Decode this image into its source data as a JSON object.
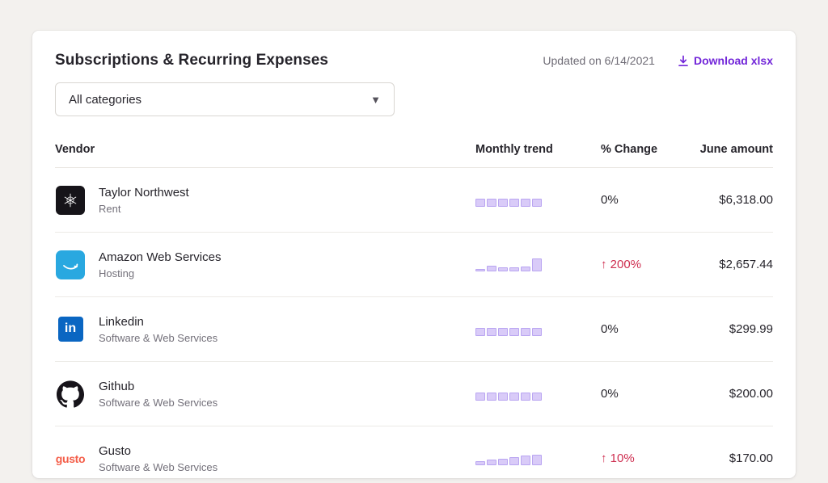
{
  "header": {
    "title": "Subscriptions & Recurring Expenses",
    "updated": "Updated on 6/14/2021",
    "download_label": "Download xlsx",
    "download_icon": "download-icon"
  },
  "filter": {
    "selected": "All categories",
    "chevron_icon": "chevron-down-icon"
  },
  "table": {
    "headers": [
      "Vendor",
      "Monthly trend",
      "% Change",
      "June amount"
    ],
    "rows": [
      {
        "vendor": "Taylor Northwest",
        "category": "Rent",
        "icon": "taylor-northwest-logo",
        "trend": [
          10,
          10,
          10,
          10,
          10,
          10
        ],
        "change": "0%",
        "change_type": "neutral",
        "amount": "$6,318.00"
      },
      {
        "vendor": "Amazon Web Services",
        "category": "Hosting",
        "icon": "aws-logo",
        "trend": [
          3,
          7,
          5,
          5,
          6,
          16
        ],
        "change": "↑ 200%",
        "change_type": "up",
        "amount": "$2,657.44"
      },
      {
        "vendor": "Linkedin",
        "category": "Software & Web Services",
        "icon": "linkedin-logo",
        "trend": [
          10,
          10,
          10,
          10,
          10,
          10
        ],
        "change": "0%",
        "change_type": "neutral",
        "amount": "$299.99"
      },
      {
        "vendor": "Github",
        "category": "Software & Web Services",
        "icon": "github-logo",
        "trend": [
          10,
          10,
          10,
          10,
          10,
          10
        ],
        "change": "0%",
        "change_type": "neutral",
        "amount": "$200.00"
      },
      {
        "vendor": "Gusto",
        "category": "Software & Web Services",
        "icon": "gusto-logo",
        "trend": [
          5,
          7,
          8,
          10,
          12,
          13
        ],
        "change": "↑ 10%",
        "change_type": "up",
        "amount": "$170.00"
      }
    ]
  },
  "colors": {
    "accent_purple": "#7226d9",
    "change_up_red": "#ce2d4f",
    "trend_bar_fill": "#d9cbf8",
    "trend_bar_border": "#b9a5f1",
    "card_bg": "#ffffff",
    "page_bg": "#f3f1ee"
  }
}
